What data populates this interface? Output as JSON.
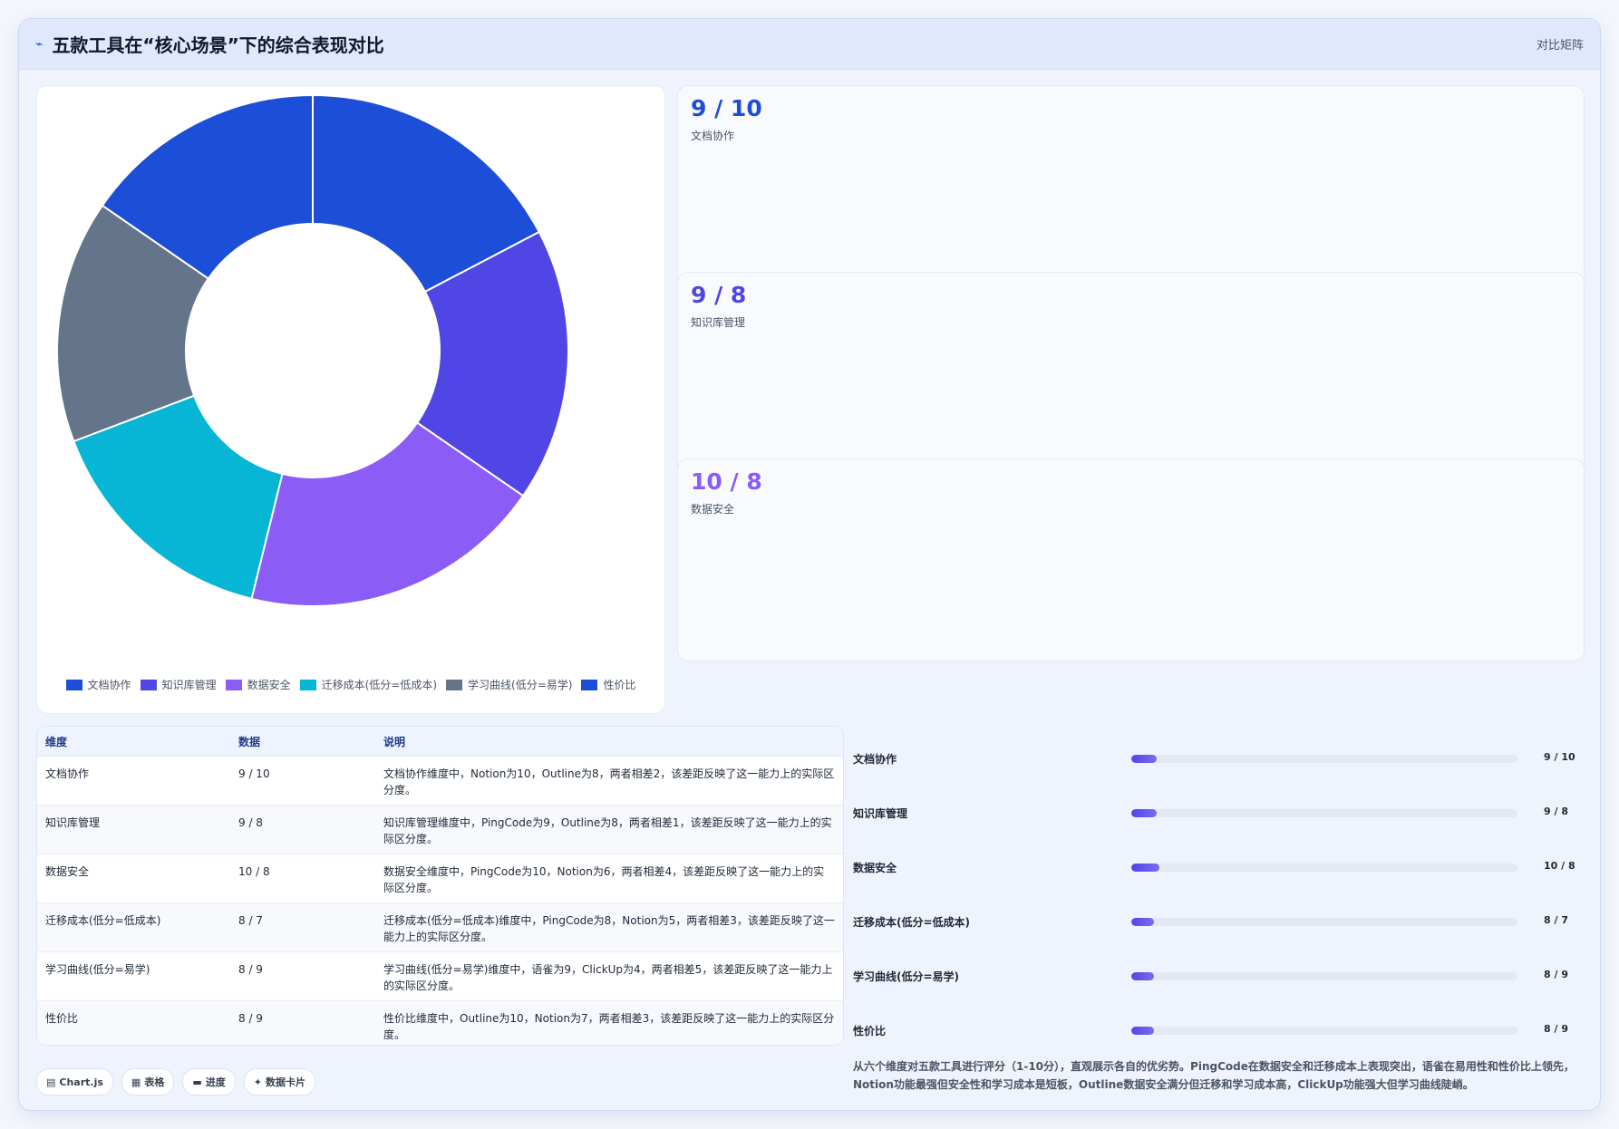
{
  "header": {
    "icon": "chart-trend-icon",
    "title": "五款工具在“核心场景”下的综合表现对比",
    "right_label": "对比矩阵"
  },
  "chart_data": {
    "type": "pie",
    "variant": "donut",
    "categories": [
      "文档协作",
      "知识库管理",
      "数据安全",
      "迁移成本(低分=低成本)",
      "学习曲线(低分=易学)",
      "性价比"
    ],
    "values": [
      9,
      9,
      10,
      8,
      8,
      8
    ],
    "colors": [
      "#1d4ed8",
      "#4f46e5",
      "#8b5cf6",
      "#06b6d4",
      "#64748b",
      "#1d4ed8"
    ],
    "legend_position": "bottom",
    "title": ""
  },
  "stat_cards": [
    {
      "value": "9 / 10",
      "label": "文档协作",
      "color": "#1d4ed8"
    },
    {
      "value": "9 / 8",
      "label": "知识库管理",
      "color": "#4f46e5"
    },
    {
      "value": "10 / 8",
      "label": "数据安全",
      "color": "#8b5cf6"
    }
  ],
  "table": {
    "headers": [
      "维度",
      "数据",
      "说明"
    ],
    "rows": [
      {
        "dim": "文档协作",
        "val": "9 / 10",
        "desc": "文档协作维度中，Notion为10，Outline为8，两者相差2，该差距反映了这一能力上的实际区分度。"
      },
      {
        "dim": "知识库管理",
        "val": "9 / 8",
        "desc": "知识库管理维度中，PingCode为9，Outline为8，两者相差1，该差距反映了这一能力上的实际区分度。"
      },
      {
        "dim": "数据安全",
        "val": "10 / 8",
        "desc": "数据安全维度中，PingCode为10，Notion为6，两者相差4，该差距反映了这一能力上的实际区分度。"
      },
      {
        "dim": "迁移成本(低分=低成本)",
        "val": "8 / 7",
        "desc": "迁移成本(低分=低成本)维度中，PingCode为8，Notion为5，两者相差3，该差距反映了这一能力上的实际区分度。"
      },
      {
        "dim": "学习曲线(低分=易学)",
        "val": "8 / 9",
        "desc": "学习曲线(低分=易学)维度中，语雀为9，ClickUp为4，两者相差5，该差距反映了这一能力上的实际区分度。"
      },
      {
        "dim": "性价比",
        "val": "8 / 9",
        "desc": "性价比维度中，Outline为10，Notion为7，两者相差3，该差距反映了这一能力上的实际区分度。"
      }
    ]
  },
  "chips": [
    {
      "icon": "▤",
      "label": "Chart.js"
    },
    {
      "icon": "▦",
      "label": "表格"
    },
    {
      "icon": "▬",
      "label": "进度"
    },
    {
      "icon": "✦",
      "label": "数据卡片"
    }
  ],
  "progress": [
    {
      "label": "文档协作",
      "value": "9 / 10",
      "fraction": 0.065
    },
    {
      "label": "知识库管理",
      "value": "9 / 8",
      "fraction": 0.065
    },
    {
      "label": "数据安全",
      "value": "10 / 8",
      "fraction": 0.072
    },
    {
      "label": "迁移成本(低分=低成本)",
      "value": "8 / 7",
      "fraction": 0.058
    },
    {
      "label": "学习曲线(低分=易学)",
      "value": "8 / 9",
      "fraction": 0.058
    },
    {
      "label": "性价比",
      "value": "8 / 9",
      "fraction": 0.058
    }
  ],
  "summary": "从六个维度对五款工具进行评分（1-10分），直观展示各自的优劣势。PingCode在数据安全和迁移成本上表现突出，语雀在易用性和性价比上领先，Notion功能最强但安全性和学习成本是短板，Outline数据安全满分但迁移和学习成本高，ClickUp功能强大但学习曲线陡峭。"
}
